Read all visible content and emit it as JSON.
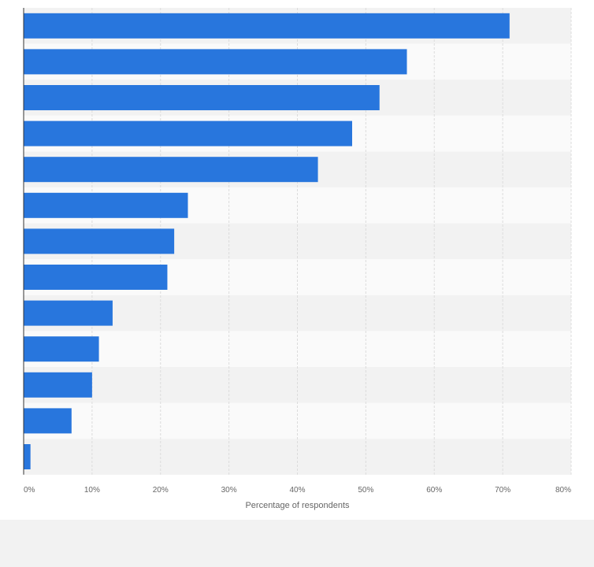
{
  "chart_data": {
    "type": "bar",
    "orientation": "horizontal",
    "title": "",
    "categories": [
      "",
      "",
      "",
      "",
      "",
      "",
      "",
      "",
      "",
      "",
      "",
      "",
      ""
    ],
    "values": [
      71,
      56,
      52,
      48,
      43,
      24,
      22,
      21,
      13,
      11,
      10,
      7,
      1
    ],
    "xlabel": "Percentage of respondents",
    "ylabel": "",
    "xlim": [
      0,
      80
    ],
    "x_ticks": [
      "0%",
      "10%",
      "20%",
      "30%",
      "40%",
      "50%",
      "60%",
      "70%",
      "80%"
    ],
    "grid": true,
    "legend": "none",
    "bar_color": "#2876dd",
    "band_colors": [
      "#f2f2f2",
      "#fafafa"
    ]
  }
}
